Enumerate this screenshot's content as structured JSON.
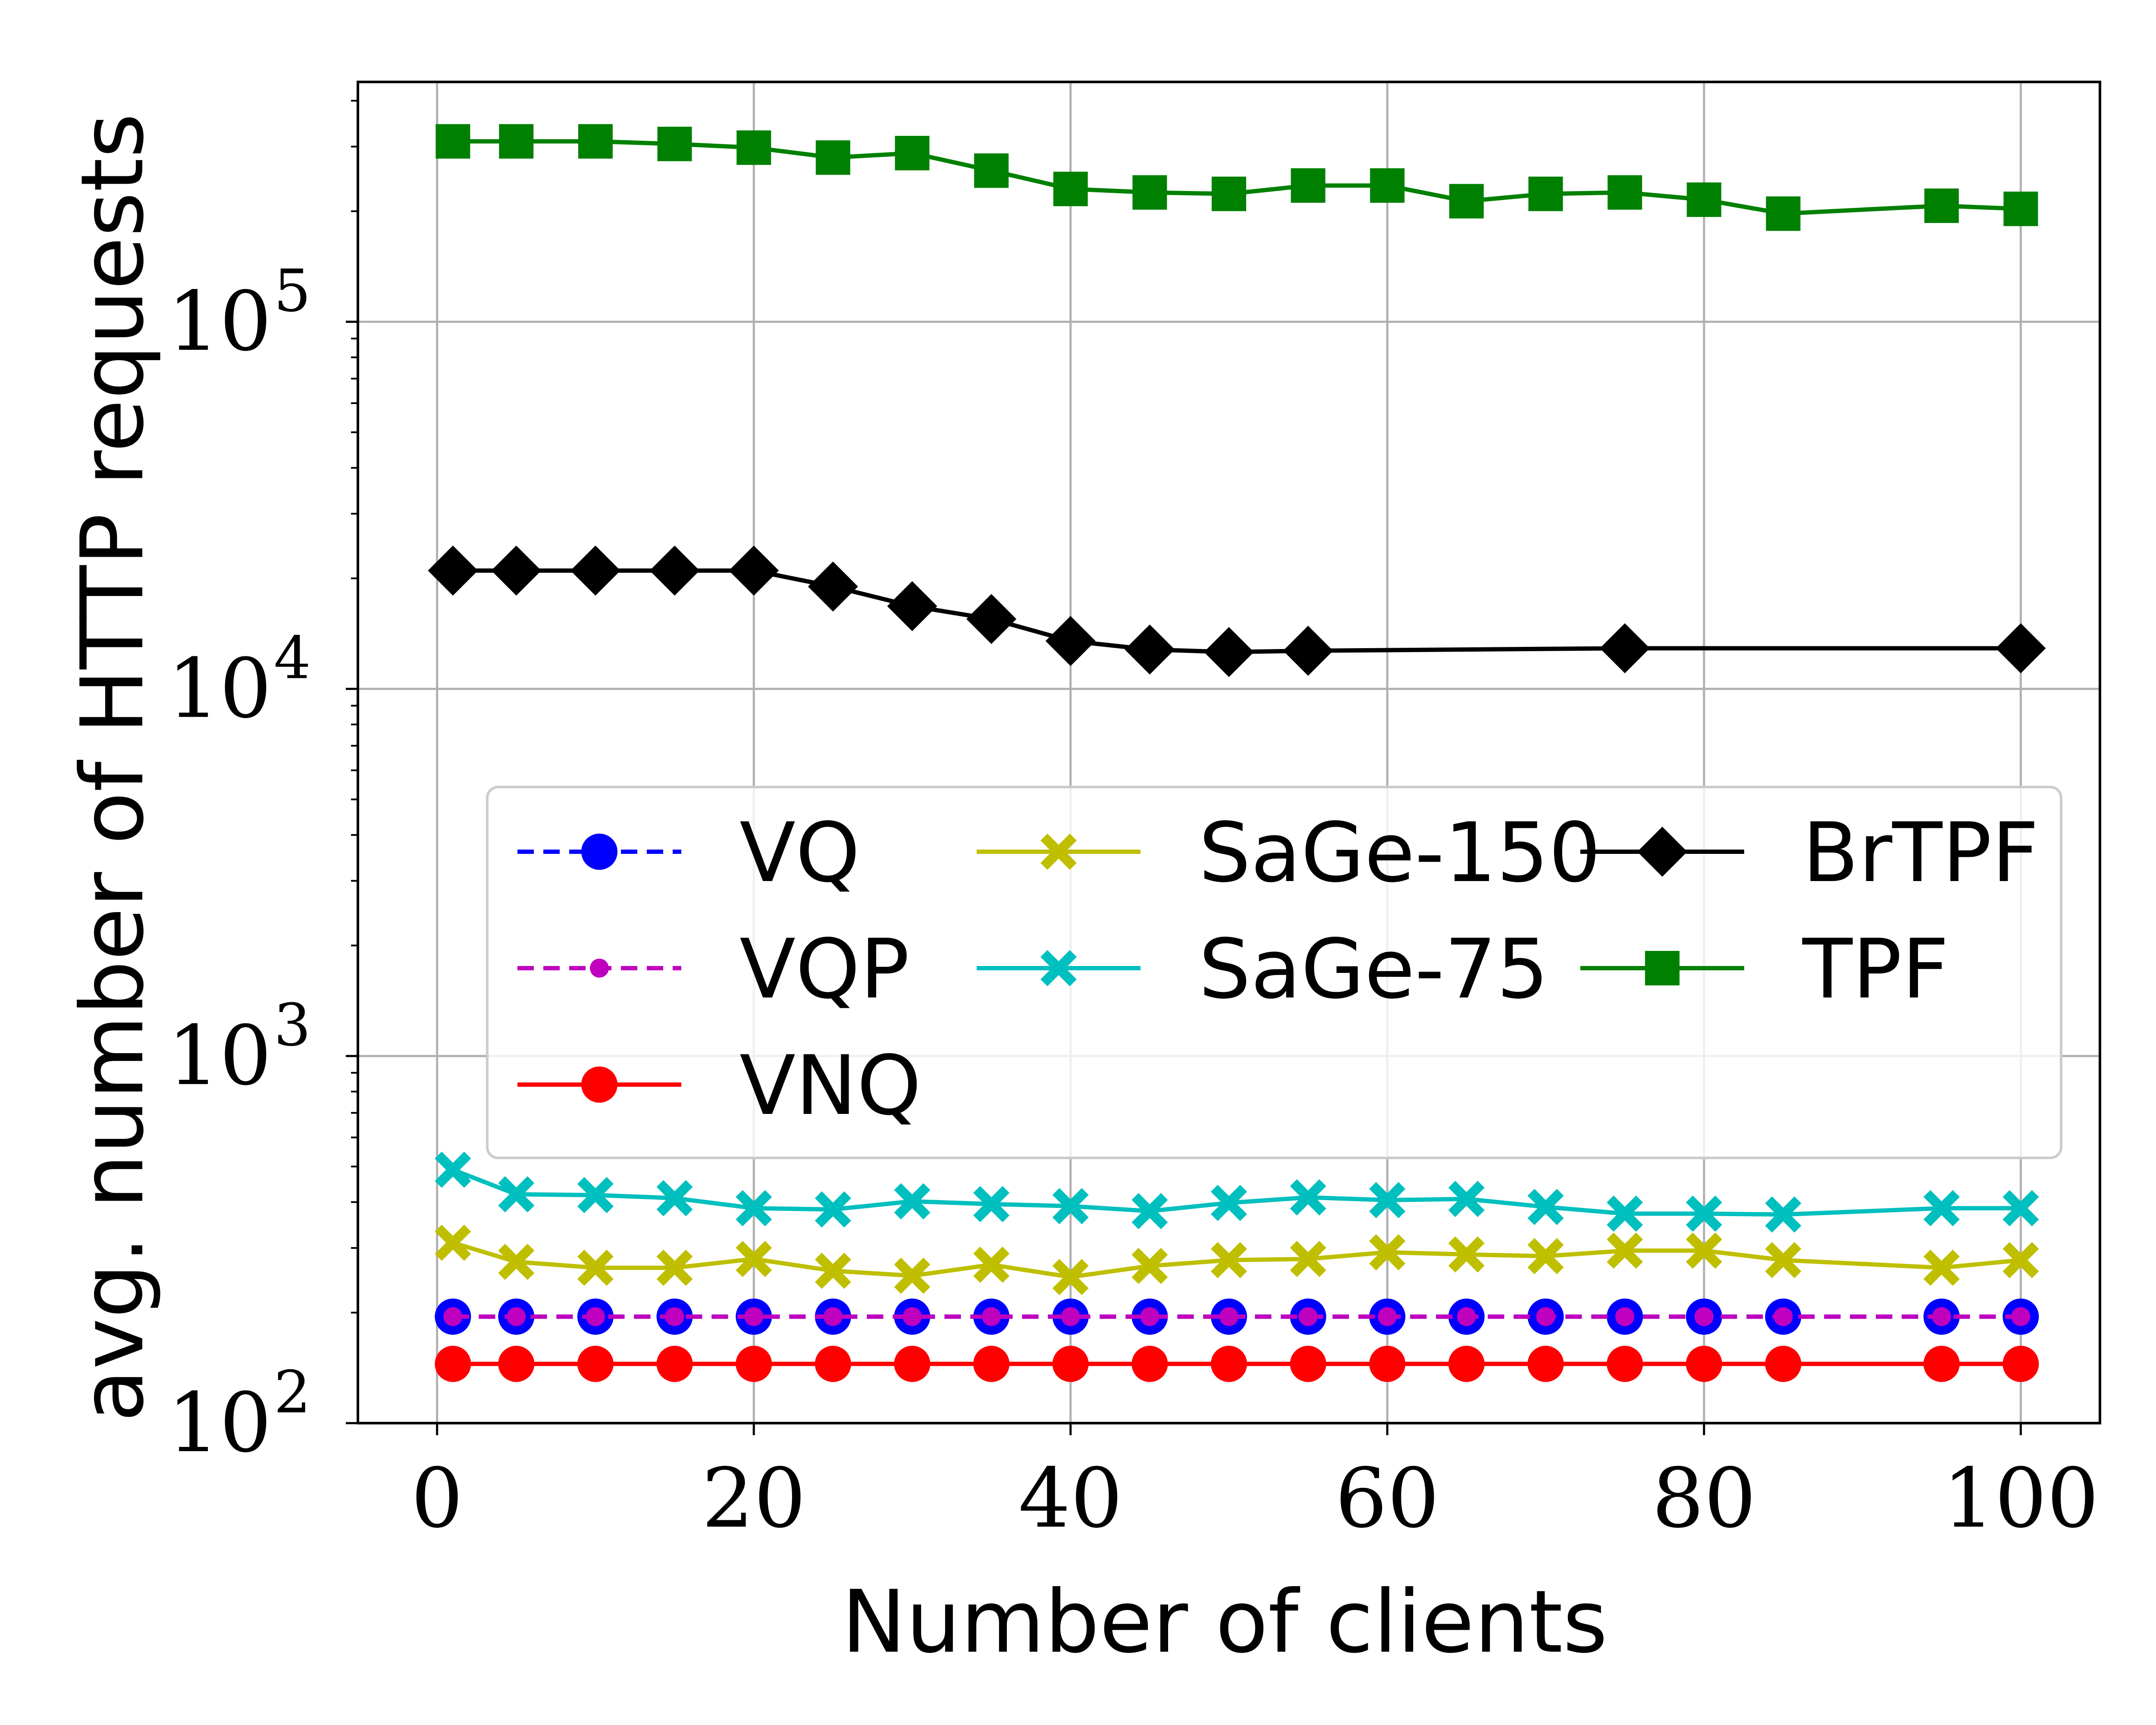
{
  "chart_data": {
    "type": "line",
    "xlabel": "Number of clients",
    "ylabel": "avg. number of HTTP requests",
    "xlim": [
      -5,
      105
    ],
    "ylim": [
      100,
      450000
    ],
    "yscale": "log",
    "grid": true,
    "legend_position": "center-right",
    "x_ticks": [
      {
        "v": 0,
        "label": "0"
      },
      {
        "v": 20,
        "label": "20"
      },
      {
        "v": 40,
        "label": "40"
      },
      {
        "v": 60,
        "label": "60"
      },
      {
        "v": 80,
        "label": "80"
      },
      {
        "v": 100,
        "label": "100"
      }
    ],
    "y_ticks": [
      {
        "v": 100,
        "base": "10",
        "exp": "2"
      },
      {
        "v": 1000,
        "base": "10",
        "exp": "3"
      },
      {
        "v": 10000,
        "base": "10",
        "exp": "4"
      },
      {
        "v": 100000,
        "base": "10",
        "exp": "5"
      }
    ],
    "series": [
      {
        "name": "VQ",
        "color": "#0000ff",
        "dash": "dashed",
        "marker": "circle",
        "x": [
          1,
          5,
          10,
          15,
          20,
          25,
          30,
          35,
          40,
          45,
          50,
          55,
          60,
          65,
          70,
          75,
          80,
          85,
          95,
          100
        ],
        "y": [
          195,
          195,
          195,
          195,
          195,
          195,
          195,
          195,
          195,
          195,
          195,
          195,
          195,
          195,
          195,
          195,
          195,
          195,
          195,
          195
        ]
      },
      {
        "name": "VQP",
        "color": "#bf00bf",
        "dash": "dashed",
        "marker": "small-circle",
        "x": [
          1,
          5,
          10,
          15,
          20,
          25,
          30,
          35,
          40,
          45,
          50,
          55,
          60,
          65,
          70,
          75,
          80,
          85,
          95,
          100
        ],
        "y": [
          195,
          195,
          195,
          195,
          195,
          195,
          195,
          195,
          195,
          195,
          195,
          195,
          195,
          195,
          195,
          195,
          195,
          195,
          195,
          195
        ]
      },
      {
        "name": "VNQ",
        "color": "#ff0000",
        "dash": "solid",
        "marker": "circle",
        "x": [
          1,
          5,
          10,
          15,
          20,
          25,
          30,
          35,
          40,
          45,
          50,
          55,
          60,
          65,
          70,
          75,
          80,
          85,
          95,
          100
        ],
        "y": [
          145,
          145,
          145,
          145,
          145,
          145,
          145,
          145,
          145,
          145,
          145,
          145,
          145,
          145,
          145,
          145,
          145,
          145,
          145,
          145
        ]
      },
      {
        "name": "SaGe-150",
        "color": "#bfbf00",
        "dash": "solid",
        "marker": "x-filled",
        "x": [
          1,
          5,
          10,
          15,
          20,
          25,
          30,
          35,
          40,
          45,
          50,
          55,
          60,
          65,
          70,
          75,
          80,
          85,
          95,
          100
        ],
        "y": [
          310,
          275,
          265,
          265,
          280,
          260,
          252,
          270,
          250,
          268,
          278,
          280,
          292,
          288,
          285,
          295,
          295,
          278,
          265,
          278
        ]
      },
      {
        "name": "SaGe-75",
        "color": "#00bfbf",
        "dash": "solid",
        "marker": "x-filled",
        "x": [
          1,
          5,
          10,
          15,
          20,
          25,
          30,
          35,
          40,
          45,
          50,
          55,
          60,
          65,
          70,
          75,
          80,
          85,
          95,
          100
        ],
        "y": [
          490,
          420,
          418,
          410,
          385,
          382,
          402,
          395,
          390,
          378,
          398,
          412,
          405,
          408,
          388,
          372,
          372,
          370,
          385,
          385
        ]
      },
      {
        "name": "BrTPF",
        "color": "#000000",
        "dash": "solid",
        "marker": "diamond",
        "x": [
          1,
          5,
          10,
          15,
          20,
          25,
          30,
          35,
          40,
          45,
          50,
          55,
          75,
          100
        ],
        "y": [
          21000,
          21000,
          21000,
          21000,
          21000,
          19000,
          16800,
          15500,
          13500,
          12800,
          12600,
          12700,
          12900,
          12900
        ]
      },
      {
        "name": "TPF",
        "color": "#008000",
        "dash": "solid",
        "marker": "square",
        "x": [
          1,
          5,
          10,
          15,
          20,
          25,
          30,
          35,
          40,
          45,
          50,
          55,
          60,
          65,
          70,
          75,
          80,
          85,
          95,
          100
        ],
        "y": [
          310000,
          310000,
          310000,
          305000,
          298000,
          280000,
          288000,
          258000,
          230000,
          225000,
          223000,
          235000,
          235000,
          213000,
          223000,
          225000,
          215000,
          197000,
          207000,
          203000
        ]
      }
    ]
  }
}
